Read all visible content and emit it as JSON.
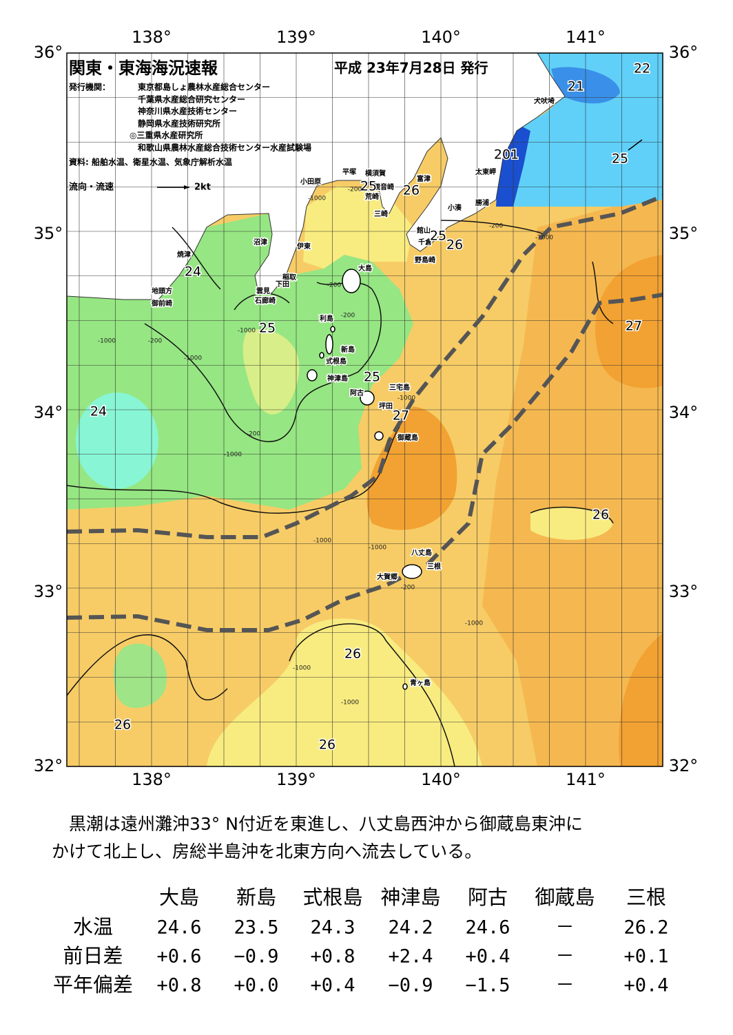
{
  "header": {
    "title": "関東・東海海況速報",
    "issued": "平成 23年7月28日 発行"
  },
  "issuers": {
    "label": "発行機関：",
    "names": [
      "東京都島しょ農林水産総合センター",
      "千葉県水産総合研究センター",
      "神奈川県水産技術センター",
      "静岡県水産技術研究所",
      "◎三重県水産研究所",
      "和歌山県農林水産総合技術センター水産試験場"
    ]
  },
  "source": "資料: 船舶水温、衛星水温、気象庁解析水温",
  "legend": {
    "label": "流向・流速",
    "speed": "2kt"
  },
  "map": {
    "lon_labels": [
      "138°",
      "139°",
      "140°",
      "141°"
    ],
    "lat_labels": [
      "36°",
      "35°",
      "34°",
      "33°",
      "32°"
    ],
    "places": [
      "犬吠埼",
      "太東岬",
      "勝浦",
      "小湊",
      "館山",
      "千倉",
      "野島崎",
      "富津",
      "横須賀",
      "観音崎",
      "荒崎",
      "三崎",
      "平塚",
      "小田原",
      "沼津",
      "伊東",
      "稲取",
      "下田",
      "雲見",
      "石廊崎",
      "焼津",
      "地頭方",
      "御前崎",
      "大島",
      "利島",
      "新島",
      "式根島",
      "神津島",
      "三宅島",
      "阿古",
      "坪田",
      "御蔵島",
      "八丈島",
      "三根",
      "大賀郷",
      "青ヶ島"
    ],
    "temperatures": [
      22,
      21,
      201,
      25,
      25,
      26,
      25,
      26,
      24,
      25,
      27,
      25,
      27,
      24,
      26,
      26,
      26,
      26
    ],
    "depths": [
      "-200",
      "-200",
      "-200",
      "-200",
      "-200",
      "-200",
      "-200",
      "-1000",
      "-1000",
      "-1000",
      "-1000",
      "-1000",
      "-1000",
      "-1000",
      "-1000",
      "-1000",
      "-1000",
      "-1000",
      "-1000"
    ]
  },
  "summary": [
    "黒潮は遠州灘沖33° N付近を東進し、八丈島西沖から御蔵島東沖に",
    "かけて北上し、房総半島沖を北東方向へ流去している。"
  ],
  "table": {
    "header": [
      "大島",
      "新島",
      "式根島",
      "神津島",
      "阿古",
      "御蔵島",
      "三根"
    ],
    "rows": [
      {
        "label": "水温",
        "values": [
          "24.6",
          "23.5",
          "24.3",
          "24.2",
          "24.6",
          "－",
          "26.2"
        ]
      },
      {
        "label": "前日差",
        "values": [
          "+0.6",
          "−0.9",
          "+0.8",
          "+2.4",
          "+0.4",
          "－",
          "+0.1"
        ]
      },
      {
        "label": "平年偏差",
        "values": [
          "+0.8",
          "+0.0",
          "+0.4",
          "−0.9",
          "−1.5",
          "－",
          "+0.4"
        ]
      }
    ]
  }
}
